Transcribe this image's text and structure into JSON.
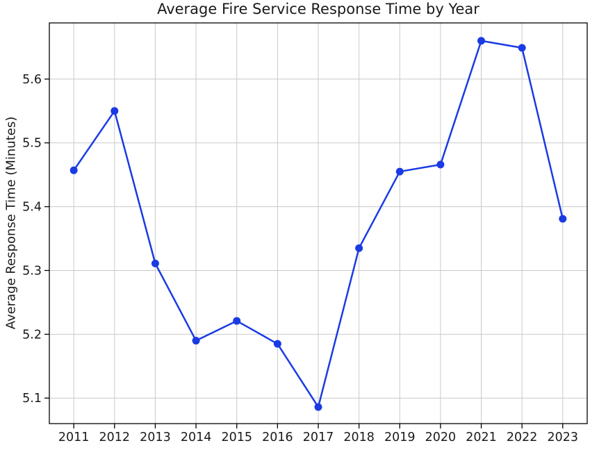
{
  "chart_data": {
    "type": "line",
    "title": "Average Fire Service Response Time by Year",
    "xlabel": "",
    "ylabel": "Average Response Time (Minutes)",
    "categories": [
      2011,
      2012,
      2013,
      2014,
      2015,
      2016,
      2017,
      2018,
      2019,
      2020,
      2021,
      2022,
      2023
    ],
    "values": [
      5.457,
      5.55,
      5.311,
      5.19,
      5.221,
      5.185,
      5.086,
      5.335,
      5.455,
      5.466,
      5.66,
      5.649,
      5.381
    ],
    "series_name": "Average Response Time (Minutes)",
    "x_tick_labels": [
      "2011",
      "2012",
      "2013",
      "2014",
      "2015",
      "2016",
      "2017",
      "2018",
      "2019",
      "2020",
      "2021",
      "2022",
      "2023"
    ],
    "y_ticks": [
      5.1,
      5.2,
      5.3,
      5.4,
      5.5,
      5.6
    ],
    "y_tick_labels": [
      "5.1",
      "5.2",
      "5.3",
      "5.4",
      "5.5",
      "5.6"
    ],
    "xlim": [
      2010.4,
      2023.6
    ],
    "ylim": [
      5.06,
      5.688
    ],
    "grid": true,
    "legend": "none",
    "marker": "circle",
    "line_color": "#1a3be4",
    "marker_color": "#1a3be4",
    "grid_color": "#c9c9c9",
    "axis_color": "#000000",
    "text_color": "#1a1a1a",
    "background_color": "#ffffff"
  }
}
